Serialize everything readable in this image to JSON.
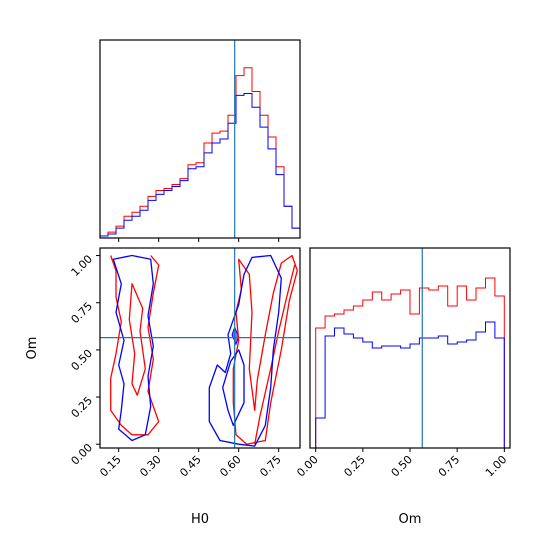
{
  "chart_data": {
    "type": "corner",
    "colors": {
      "series_a": "#ff0000",
      "series_b": "#0000ff",
      "truth": "#1f77b4"
    },
    "parameters": [
      "H0",
      "Om"
    ],
    "truth": {
      "H0": 0.585,
      "Om": 0.565
    },
    "panels": [
      {
        "id": "hist-h0",
        "type": "step-histogram",
        "xlim": [
          0.08,
          0.83
        ],
        "ylim": [
          0,
          1.0
        ],
        "bin_edges": [
          0.08,
          0.11,
          0.14,
          0.17,
          0.2,
          0.23,
          0.26,
          0.29,
          0.32,
          0.35,
          0.38,
          0.41,
          0.44,
          0.47,
          0.5,
          0.53,
          0.56,
          0.59,
          0.62,
          0.65,
          0.68,
          0.71,
          0.74,
          0.77,
          0.8,
          0.83
        ],
        "series": [
          {
            "color": "red",
            "values": [
              0.01,
              0.03,
              0.06,
              0.11,
              0.13,
              0.16,
              0.21,
              0.24,
              0.25,
              0.27,
              0.3,
              0.37,
              0.38,
              0.48,
              0.53,
              0.54,
              0.62,
              0.82,
              0.86,
              0.74,
              0.62,
              0.51,
              0.36,
              0.16,
              0.05
            ]
          },
          {
            "color": "blue",
            "values": [
              0.01,
              0.02,
              0.05,
              0.09,
              0.11,
              0.14,
              0.19,
              0.22,
              0.24,
              0.26,
              0.29,
              0.35,
              0.36,
              0.43,
              0.48,
              0.5,
              0.58,
              0.72,
              0.73,
              0.66,
              0.56,
              0.45,
              0.32,
              0.16,
              0.05
            ]
          }
        ]
      },
      {
        "id": "hist-om",
        "type": "step-histogram",
        "xlim": [
          -0.03,
          1.03
        ],
        "ylim": [
          0,
          1.0
        ],
        "xticks": [
          0.0,
          0.25,
          0.5,
          0.75,
          1.0
        ],
        "xtick_labels": [
          "0.00",
          "0.25",
          "0.50",
          "0.75",
          "1.00"
        ],
        "xlabel": "Om",
        "bin_edges": [
          0.0,
          0.05,
          0.1,
          0.15,
          0.2,
          0.25,
          0.3,
          0.35,
          0.4,
          0.45,
          0.5,
          0.55,
          0.6,
          0.65,
          0.7,
          0.75,
          0.8,
          0.85,
          0.9,
          0.95,
          1.0
        ],
        "series": [
          {
            "color": "red",
            "values": [
              0.6,
              0.66,
              0.67,
              0.69,
              0.71,
              0.74,
              0.78,
              0.74,
              0.77,
              0.79,
              0.67,
              0.8,
              0.79,
              0.81,
              0.71,
              0.81,
              0.74,
              0.8,
              0.85,
              0.76
            ]
          },
          {
            "color": "blue",
            "values": [
              0.15,
              0.56,
              0.6,
              0.57,
              0.55,
              0.53,
              0.5,
              0.51,
              0.51,
              0.5,
              0.52,
              0.55,
              0.55,
              0.56,
              0.52,
              0.53,
              0.54,
              0.58,
              0.63,
              0.55
            ]
          }
        ]
      },
      {
        "id": "joint-h0-om",
        "type": "contour",
        "xlim": [
          0.08,
          0.83
        ],
        "ylim": [
          -0.02,
          1.04
        ],
        "xticks": [
          0.15,
          0.3,
          0.45,
          0.6,
          0.75
        ],
        "xtick_labels": [
          "0.15",
          "0.30",
          "0.45",
          "0.60",
          "0.75"
        ],
        "yticks": [
          0.0,
          0.25,
          0.5,
          0.75,
          1.0
        ],
        "ytick_labels": [
          "0.00",
          "0.25",
          "0.50",
          "0.75",
          "1.00"
        ],
        "xlabel": "H0",
        "ylabel": "Om",
        "contours": [
          {
            "color": "red",
            "points": [
              [
                0.12,
                1.0
              ],
              [
                0.14,
                0.92
              ],
              [
                0.14,
                0.78
              ],
              [
                0.16,
                0.65
              ],
              [
                0.14,
                0.48
              ],
              [
                0.12,
                0.35
              ],
              [
                0.12,
                0.18
              ],
              [
                0.16,
                0.1
              ],
              [
                0.2,
                0.05
              ],
              [
                0.26,
                0.05
              ],
              [
                0.3,
                0.12
              ],
              [
                0.26,
                0.28
              ],
              [
                0.28,
                0.45
              ],
              [
                0.26,
                0.62
              ],
              [
                0.28,
                0.8
              ],
              [
                0.3,
                0.95
              ],
              [
                0.27,
                1.0
              ]
            ]
          },
          {
            "color": "red",
            "points": [
              [
                0.2,
                0.85
              ],
              [
                0.24,
                0.72
              ],
              [
                0.23,
                0.6
              ],
              [
                0.25,
                0.4
              ],
              [
                0.22,
                0.26
              ],
              [
                0.2,
                0.32
              ],
              [
                0.21,
                0.48
              ],
              [
                0.19,
                0.66
              ],
              [
                0.2,
                0.85
              ]
            ]
          },
          {
            "color": "red",
            "points": [
              [
                0.6,
                0.98
              ],
              [
                0.61,
                0.82
              ],
              [
                0.59,
                0.7
              ],
              [
                0.6,
                0.55
              ],
              [
                0.58,
                0.4
              ],
              [
                0.58,
                0.22
              ],
              [
                0.59,
                0.05
              ],
              [
                0.63,
                0.0
              ],
              [
                0.7,
                0.02
              ],
              [
                0.72,
                0.22
              ],
              [
                0.76,
                0.5
              ],
              [
                0.79,
                0.76
              ],
              [
                0.82,
                0.92
              ],
              [
                0.8,
                1.0
              ],
              [
                0.76,
                0.96
              ],
              [
                0.73,
                0.8
              ],
              [
                0.7,
                0.58
              ],
              [
                0.67,
                0.34
              ],
              [
                0.66,
                0.18
              ],
              [
                0.64,
                0.4
              ],
              [
                0.65,
                0.7
              ],
              [
                0.64,
                0.9
              ],
              [
                0.6,
                0.98
              ]
            ]
          },
          {
            "color": "red",
            "points": [
              [
                0.66,
                0.0
              ],
              [
                0.68,
                0.15
              ],
              [
                0.72,
                0.4
              ],
              [
                0.75,
                0.6
              ],
              [
                0.78,
                0.78
              ],
              [
                0.81,
                0.95
              ]
            ]
          },
          {
            "color": "blue",
            "points": [
              [
                0.13,
                0.98
              ],
              [
                0.16,
                0.85
              ],
              [
                0.14,
                0.7
              ],
              [
                0.17,
                0.55
              ],
              [
                0.15,
                0.42
              ],
              [
                0.17,
                0.32
              ],
              [
                0.16,
                0.18
              ],
              [
                0.15,
                0.08
              ],
              [
                0.2,
                0.02
              ],
              [
                0.25,
                0.05
              ],
              [
                0.27,
                0.2
              ],
              [
                0.26,
                0.36
              ],
              [
                0.28,
                0.52
              ],
              [
                0.26,
                0.68
              ],
              [
                0.28,
                0.85
              ],
              [
                0.27,
                0.98
              ],
              [
                0.2,
                1.0
              ],
              [
                0.13,
                0.98
              ]
            ]
          },
          {
            "color": "blue",
            "points": [
              [
                0.62,
                0.9
              ],
              [
                0.65,
                0.99
              ],
              [
                0.72,
                1.0
              ],
              [
                0.76,
                0.88
              ],
              [
                0.75,
                0.7
              ],
              [
                0.73,
                0.5
              ],
              [
                0.72,
                0.3
              ],
              [
                0.7,
                0.1
              ],
              [
                0.66,
                -0.01
              ],
              [
                0.6,
                0.0
              ],
              [
                0.53,
                0.02
              ],
              [
                0.49,
                0.12
              ],
              [
                0.49,
                0.3
              ],
              [
                0.52,
                0.42
              ],
              [
                0.55,
                0.38
              ],
              [
                0.57,
                0.48
              ],
              [
                0.56,
                0.58
              ],
              [
                0.58,
                0.66
              ],
              [
                0.6,
                0.74
              ],
              [
                0.61,
                0.82
              ],
              [
                0.62,
                0.9
              ]
            ]
          },
          {
            "color": "blue",
            "points": [
              [
                0.54,
                0.3
              ],
              [
                0.56,
                0.18
              ],
              [
                0.58,
                0.1
              ],
              [
                0.62,
                0.22
              ],
              [
                0.62,
                0.42
              ],
              [
                0.6,
                0.5
              ],
              [
                0.57,
                0.44
              ],
              [
                0.54,
                0.3
              ]
            ]
          }
        ],
        "filled": [
          {
            "color": "blue",
            "points": [
              [
                0.575,
                0.58
              ],
              [
                0.59,
                0.53
              ],
              [
                0.6,
                0.57
              ],
              [
                0.585,
                0.62
              ],
              [
                0.575,
                0.58
              ]
            ]
          }
        ]
      }
    ]
  }
}
